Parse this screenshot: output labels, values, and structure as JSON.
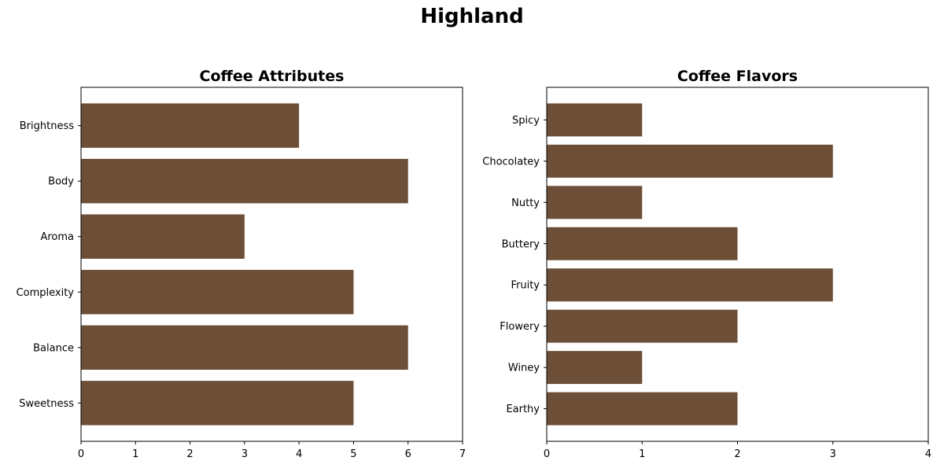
{
  "figure": {
    "title": "Highland"
  },
  "colors": {
    "bar": "#6d4f37",
    "axis": "#000000",
    "background": "#ffffff"
  },
  "chart_data": [
    {
      "type": "bar",
      "orientation": "horizontal",
      "title": "Coffee Attributes",
      "categories": [
        "Brightness",
        "Body",
        "Aroma",
        "Complexity",
        "Balance",
        "Sweetness"
      ],
      "values": [
        4,
        6,
        3,
        5,
        6,
        5
      ],
      "xlim": [
        0,
        7
      ],
      "xticks": [
        0,
        1,
        2,
        3,
        4,
        5,
        6,
        7
      ],
      "xlabel": "",
      "ylabel": "",
      "grid": false,
      "legend": "none"
    },
    {
      "type": "bar",
      "orientation": "horizontal",
      "title": "Coffee Flavors",
      "categories": [
        "Spicy",
        "Chocolatey",
        "Nutty",
        "Buttery",
        "Fruity",
        "Flowery",
        "Winey",
        "Earthy"
      ],
      "values": [
        1,
        3,
        1,
        2,
        3,
        2,
        1,
        2
      ],
      "xlim": [
        0,
        4
      ],
      "xticks": [
        0,
        1,
        2,
        3,
        4
      ],
      "xlabel": "",
      "ylabel": "",
      "grid": false,
      "legend": "none"
    }
  ]
}
